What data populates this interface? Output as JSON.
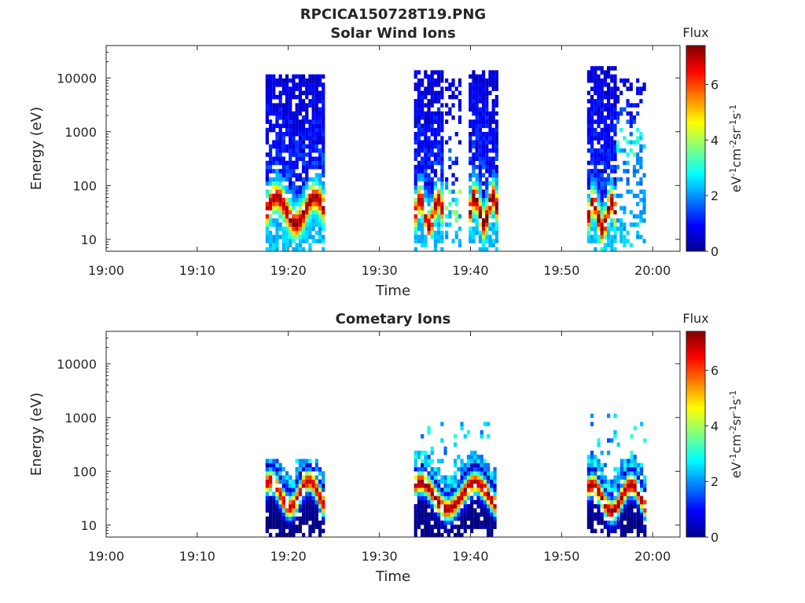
{
  "figure": {
    "title": "RPCICA150728T19.PNG"
  },
  "chart_data": [
    {
      "type": "heatmap",
      "title": "Solar Wind Ions",
      "xlabel": "Time",
      "ylabel": "Energy (eV)",
      "x_ticks": [
        "19:00",
        "19:10",
        "19:20",
        "19:30",
        "19:40",
        "19:50",
        "20:00"
      ],
      "xlim_minutes": [
        0,
        63
      ],
      "y_ticks": [
        10,
        100,
        1000,
        10000
      ],
      "y_scale": "log",
      "ylim": [
        6,
        40000
      ],
      "colorbar": {
        "title": "Flux",
        "label": "eV-1cm-2sr-1s-1",
        "ticks": [
          0,
          2,
          4,
          6
        ],
        "range": [
          0,
          7.4
        ],
        "colormap": "jet"
      },
      "bursts": [
        {
          "start_min": 17.5,
          "end_min": 23.8,
          "e_top": 12000,
          "peak_e": 35,
          "peak_flux": 5.2
        },
        {
          "start_min": 33.8,
          "end_min": 36.8,
          "e_top": 15000,
          "peak_e": 32,
          "peak_flux": 5.0
        },
        {
          "start_min": 37.2,
          "end_min": 39.0,
          "e_top": 9000,
          "peak_e": 40,
          "peak_flux": 1.8,
          "sparse": true
        },
        {
          "start_min": 39.8,
          "end_min": 42.8,
          "e_top": 14000,
          "peak_e": 35,
          "peak_flux": 5.6
        },
        {
          "start_min": 52.8,
          "end_min": 55.8,
          "e_top": 16000,
          "peak_e": 28,
          "peak_flux": 5.3
        },
        {
          "start_min": 56.0,
          "end_min": 59.0,
          "e_top": 9000,
          "peak_e": 600,
          "peak_flux": 1.6,
          "sparse": true
        }
      ]
    },
    {
      "type": "heatmap",
      "title": "Cometary Ions",
      "xlabel": "Time",
      "ylabel": "Energy (eV)",
      "x_ticks": [
        "19:00",
        "19:10",
        "19:20",
        "19:30",
        "19:40",
        "19:50",
        "20:00"
      ],
      "xlim_minutes": [
        0,
        63
      ],
      "y_ticks": [
        10,
        100,
        1000,
        10000
      ],
      "y_scale": "log",
      "ylim": [
        6,
        40000
      ],
      "colorbar": {
        "title": "Flux",
        "label": "eV-1cm-2sr-1s-1",
        "ticks": [
          0,
          2,
          4,
          6
        ],
        "range": [
          0,
          7.4
        ],
        "colormap": "jet"
      },
      "bursts": [
        {
          "start_min": 17.5,
          "end_min": 23.8,
          "e_top": 180,
          "peak_e": 38,
          "peak_flux": 7.0
        },
        {
          "start_min": 33.8,
          "end_min": 42.8,
          "e_top": 900,
          "peak_e": 35,
          "peak_flux": 7.2
        },
        {
          "start_min": 52.8,
          "end_min": 59.2,
          "e_top": 1100,
          "peak_e": 32,
          "peak_flux": 7.3
        }
      ]
    }
  ]
}
